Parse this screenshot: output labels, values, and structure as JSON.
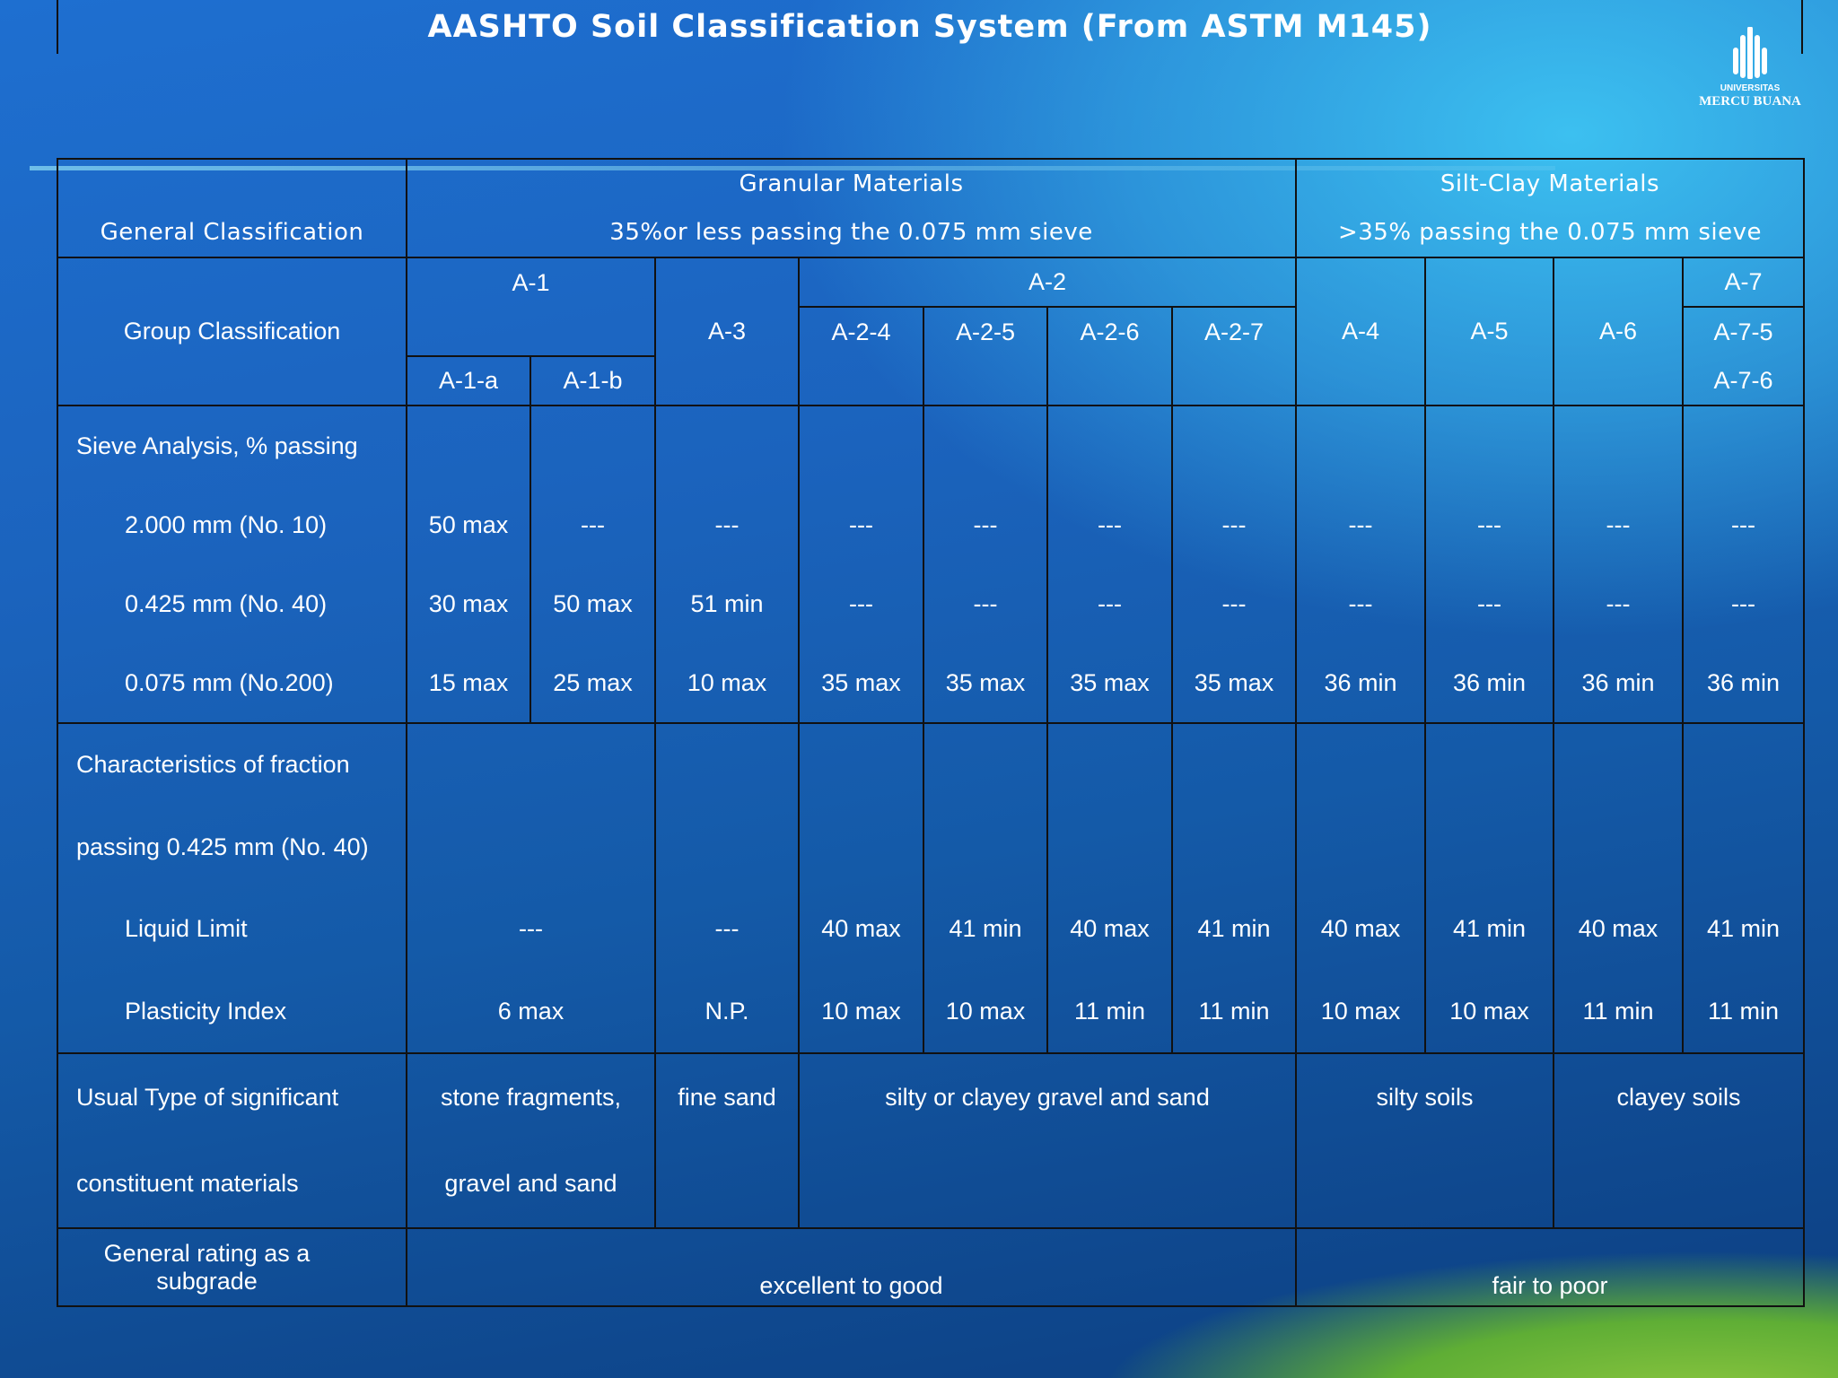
{
  "title": "AASHTO Soil Classification System (From ASTM M145)",
  "logo": {
    "line1": "UNIVERSITAS",
    "line2": "MERCU BUANA"
  },
  "table": {
    "cells": [
      {
        "lines": [
          "General Classification"
        ]
      },
      {
        "lines": [
          "Granular Materials",
          "35%or less passing the 0.075 mm sieve"
        ]
      },
      {
        "lines": [
          "Silt-Clay Materials",
          ">35% passing the 0.075 mm sieve"
        ]
      },
      {
        "lines": [
          "Group Classification"
        ]
      },
      {
        "lines": [
          "A-1"
        ]
      },
      {
        "lines": [
          "A-1-a"
        ]
      },
      {
        "lines": [
          "A-1-b"
        ]
      },
      {
        "lines": [
          "A-3"
        ]
      },
      {
        "lines": [
          "A-2"
        ]
      },
      {
        "lines": [
          "A-2-4"
        ]
      },
      {
        "lines": [
          "A-2-5"
        ]
      },
      {
        "lines": [
          "A-2-6"
        ]
      },
      {
        "lines": [
          "A-2-7"
        ]
      },
      {
        "lines": [
          "A-4"
        ]
      },
      {
        "lines": [
          "A-5"
        ]
      },
      {
        "lines": [
          "A-6"
        ]
      },
      {
        "lines": [
          "A-7"
        ]
      },
      {
        "lines": [
          "A-7-5",
          "A-7-6"
        ]
      },
      {
        "lines": [
          "Sieve Analysis, % passing",
          "2.000 mm (No. 10)",
          "0.425 mm (No. 40)",
          "0.075 mm (No.200)"
        ]
      },
      {
        "lines": [
          "50 max",
          "30 max",
          "15 max"
        ]
      },
      {
        "lines": [
          "---",
          "50 max",
          "25 max"
        ]
      },
      {
        "lines": [
          "---",
          "51 min",
          "10 max"
        ]
      },
      {
        "lines": [
          "---",
          "---",
          "35 max"
        ]
      },
      {
        "lines": [
          "---",
          "---",
          "35 max"
        ]
      },
      {
        "lines": [
          "---",
          "---",
          "35 max"
        ]
      },
      {
        "lines": [
          "---",
          "---",
          "35 max"
        ]
      },
      {
        "lines": [
          "---",
          "---",
          "36 min"
        ]
      },
      {
        "lines": [
          "---",
          "---",
          "36 min"
        ]
      },
      {
        "lines": [
          "---",
          "---",
          "36 min"
        ]
      },
      {
        "lines": [
          "---",
          "---",
          "36 min"
        ]
      },
      {
        "lines": [
          "Characteristics of fraction",
          "passing 0.425 mm (No. 40)",
          "Liquid Limit",
          "Plasticity Index"
        ]
      },
      {
        "lines": [
          "---",
          "6 max"
        ]
      },
      {
        "lines": [
          "---",
          "N.P."
        ]
      },
      {
        "lines": [
          "40 max",
          "10 max"
        ]
      },
      {
        "lines": [
          "41 min",
          "10 max"
        ]
      },
      {
        "lines": [
          "40 max",
          "11 min"
        ]
      },
      {
        "lines": [
          "41 min",
          "11 min"
        ]
      },
      {
        "lines": [
          "40 max",
          "10 max"
        ]
      },
      {
        "lines": [
          "41 min",
          "10 max"
        ]
      },
      {
        "lines": [
          "40 max",
          "11 min"
        ]
      },
      {
        "lines": [
          "41 min",
          "11 min"
        ]
      },
      {
        "lines": [
          "Usual Type of significant",
          "constituent materials"
        ]
      },
      {
        "lines": [
          "stone fragments,",
          "gravel and sand"
        ]
      },
      {
        "lines": [
          "fine sand"
        ]
      },
      {
        "lines": [
          "silty or clayey gravel and sand"
        ]
      },
      {
        "lines": [
          "silty soils"
        ]
      },
      {
        "lines": [
          "clayey soils"
        ]
      },
      {
        "lines": [
          "General rating as a subgrade"
        ]
      },
      {
        "lines": [
          "excellent to good"
        ]
      },
      {
        "lines": [
          "fair to poor"
        ]
      }
    ]
  }
}
